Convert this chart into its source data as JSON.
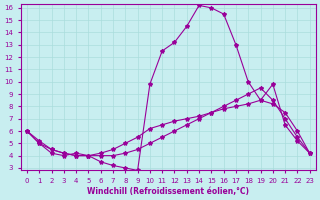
{
  "title": "",
  "xlabel": "Windchill (Refroidissement éolien,°C)",
  "ylabel": "",
  "bg_color": "#c8eef0",
  "line_color": "#990099",
  "grid_color": "#aadddd",
  "xmin": 0,
  "xmax": 23,
  "ymin": 3,
  "ymax": 16,
  "x_ticks": [
    0,
    1,
    2,
    3,
    4,
    5,
    6,
    7,
    8,
    9,
    10,
    11,
    12,
    13,
    14,
    15,
    16,
    17,
    18,
    19,
    20,
    21,
    22,
    23
  ],
  "y_ticks": [
    3,
    4,
    5,
    6,
    7,
    8,
    9,
    10,
    11,
    12,
    13,
    14,
    15,
    16
  ],
  "line1_x": [
    0,
    1,
    2,
    3,
    4,
    5,
    6,
    7,
    8,
    9,
    10,
    11,
    12,
    13,
    14,
    15,
    16,
    17,
    18,
    19,
    20,
    21,
    22,
    23
  ],
  "line1_y": [
    6.0,
    5.0,
    4.2,
    4.0,
    4.2,
    4.0,
    3.5,
    3.2,
    3.0,
    2.8,
    9.8,
    12.5,
    13.2,
    14.5,
    16.2,
    16.0,
    15.5,
    13.0,
    10.0,
    8.5,
    9.8,
    6.5,
    5.2,
    4.2
  ],
  "line2_x": [
    0,
    1,
    2,
    3,
    4,
    5,
    6,
    7,
    8,
    9,
    10,
    11,
    12,
    13,
    14,
    15,
    16,
    17,
    18,
    19,
    20,
    21,
    22,
    23
  ],
  "line2_y": [
    6.0,
    5.0,
    4.5,
    4.2,
    4.0,
    4.0,
    4.0,
    4.0,
    4.2,
    4.5,
    5.0,
    5.5,
    6.0,
    6.5,
    7.0,
    7.5,
    8.0,
    8.5,
    9.0,
    9.5,
    8.5,
    7.0,
    5.5,
    4.2
  ],
  "line3_x": [
    0,
    1,
    2,
    3,
    4,
    5,
    6,
    7,
    8,
    9,
    10,
    11,
    12,
    13,
    14,
    15,
    16,
    17,
    18,
    19,
    20,
    21,
    22,
    23
  ],
  "line3_y": [
    6.0,
    5.2,
    4.5,
    4.2,
    4.0,
    4.0,
    4.2,
    4.5,
    5.0,
    5.5,
    6.2,
    6.5,
    6.8,
    7.0,
    7.2,
    7.5,
    7.8,
    8.0,
    8.2,
    8.5,
    8.2,
    7.5,
    6.0,
    4.2
  ]
}
